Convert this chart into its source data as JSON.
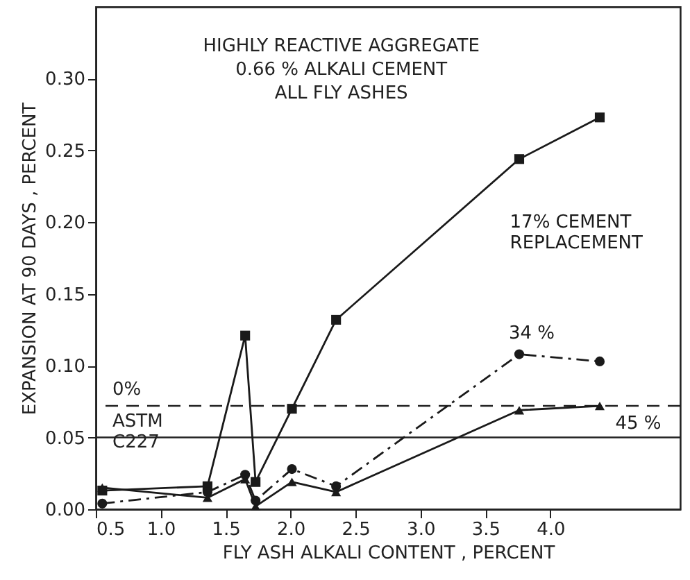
{
  "chart_data": {
    "type": "line",
    "title": "HIGHLY REACTIVE AGGREGATE\n0.66 % ALKALI CEMENT\nALL FLY ASHES",
    "xlabel": "FLY ASH ALKALI CONTENT , PERCENT",
    "ylabel": "EXPANSION AT 90 DAYS , PERCENT",
    "x": [
      0.55,
      1.36,
      1.65,
      1.73,
      2.01,
      2.35,
      3.76,
      4.38
    ],
    "series": [
      {
        "name": "17% CEMENT REPLACEMENT",
        "color": "#1a1a1a",
        "marker": "square",
        "line_style": "solid",
        "values": [
          0.013,
          0.016,
          0.121,
          0.019,
          0.07,
          0.132,
          0.244,
          0.273
        ]
      },
      {
        "name": "34 %",
        "color": "#1a1a1a",
        "marker": "circle",
        "line_style": "dashed",
        "values": [
          0.004,
          0.012,
          0.024,
          0.006,
          0.028,
          0.016,
          0.108,
          0.103
        ]
      },
      {
        "name": "45 %",
        "color": "#1a1a1a",
        "marker": "triangle",
        "line_style": "solid",
        "values": [
          0.015,
          0.008,
          0.021,
          0.002,
          0.019,
          0.012,
          0.069,
          0.072
        ]
      }
    ],
    "xlim": [
      0.5,
      5.0
    ],
    "xticks": [
      0.5,
      {
        "value": 1.0,
        "label": "1.0"
      },
      1.5,
      {
        "value": 2.0,
        "label": "2.0"
      },
      2.5,
      {
        "value": 3.0,
        "label": "3.0"
      },
      3.5,
      {
        "value": 4.0,
        "label": "4.0"
      }
    ],
    "ylim": [
      0,
      0.35
    ],
    "yticks": [
      {
        "value": 0,
        "label": "0.00"
      },
      0.05,
      {
        "value": 0.1,
        "label": "0.10"
      },
      0.15,
      {
        "value": 0.2,
        "label": "0.20"
      },
      0.25,
      {
        "value": 0.3,
        "label": "0.30"
      }
    ],
    "ref_lines": [
      {
        "axis": "y",
        "value": 0.072,
        "label": "0%",
        "line_style": "dashed"
      },
      {
        "axis": "y",
        "value": 0.05,
        "label": "ASTM\nC227",
        "line_style": "solid"
      }
    ],
    "grid": false
  }
}
